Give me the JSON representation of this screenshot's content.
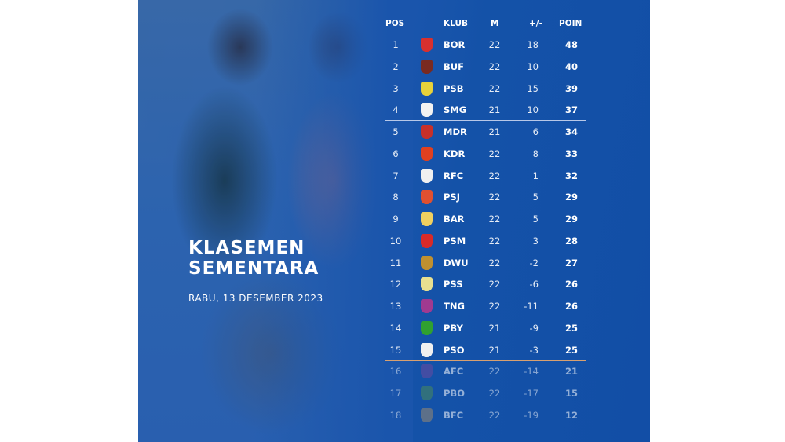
{
  "title_line1": "KLASEMEN",
  "title_line2": "SEMENTARA",
  "date": "RABU, 13 DESEMBER 2023",
  "headers": {
    "pos": "POS",
    "club": "KLUB",
    "m": "M",
    "gd": "+/-",
    "pts": "POIN"
  },
  "rows": [
    {
      "pos": "1",
      "club": "BOR",
      "m": "22",
      "gd": "18",
      "pts": "48",
      "color": "#d8302e"
    },
    {
      "pos": "2",
      "club": "BUF",
      "m": "22",
      "gd": "10",
      "pts": "40",
      "color": "#7a2a20"
    },
    {
      "pos": "3",
      "club": "PSB",
      "m": "22",
      "gd": "15",
      "pts": "39",
      "color": "#e8d23a"
    },
    {
      "pos": "4",
      "club": "SMG",
      "m": "21",
      "gd": "10",
      "pts": "37",
      "color": "#f2f2f2"
    },
    {
      "pos": "5",
      "club": "MDR",
      "m": "21",
      "gd": "6",
      "pts": "34",
      "color": "#c8302a"
    },
    {
      "pos": "6",
      "club": "KDR",
      "m": "22",
      "gd": "8",
      "pts": "33",
      "color": "#e04020"
    },
    {
      "pos": "7",
      "club": "RFC",
      "m": "22",
      "gd": "1",
      "pts": "32",
      "color": "#f0f0f0"
    },
    {
      "pos": "8",
      "club": "PSJ",
      "m": "22",
      "gd": "5",
      "pts": "29",
      "color": "#e05030"
    },
    {
      "pos": "9",
      "club": "BAR",
      "m": "22",
      "gd": "5",
      "pts": "29",
      "color": "#f0d060"
    },
    {
      "pos": "10",
      "club": "PSM",
      "m": "22",
      "gd": "3",
      "pts": "28",
      "color": "#d82a28"
    },
    {
      "pos": "11",
      "club": "DWU",
      "m": "22",
      "gd": "-2",
      "pts": "27",
      "color": "#c09030"
    },
    {
      "pos": "12",
      "club": "PSS",
      "m": "22",
      "gd": "-6",
      "pts": "26",
      "color": "#e8e090"
    },
    {
      "pos": "13",
      "club": "TNG",
      "m": "22",
      "gd": "-11",
      "pts": "26",
      "color": "#a03a90"
    },
    {
      "pos": "14",
      "club": "PBY",
      "m": "21",
      "gd": "-9",
      "pts": "25",
      "color": "#30a030"
    },
    {
      "pos": "15",
      "club": "PSO",
      "m": "21",
      "gd": "-3",
      "pts": "25",
      "color": "#f0f0f0"
    },
    {
      "pos": "16",
      "club": "AFC",
      "m": "22",
      "gd": "-14",
      "pts": "21",
      "color": "#6a4aa0"
    },
    {
      "pos": "17",
      "club": "PBO",
      "m": "22",
      "gd": "-17",
      "pts": "15",
      "color": "#4a8a5a"
    },
    {
      "pos": "18",
      "club": "BFC",
      "m": "22",
      "gd": "-19",
      "pts": "12",
      "color": "#9a8a70"
    }
  ],
  "colors": {
    "panel": "#1452a8",
    "zone_line_top": "#b8c8e8",
    "zone_line_relegation": "#d8a070"
  }
}
